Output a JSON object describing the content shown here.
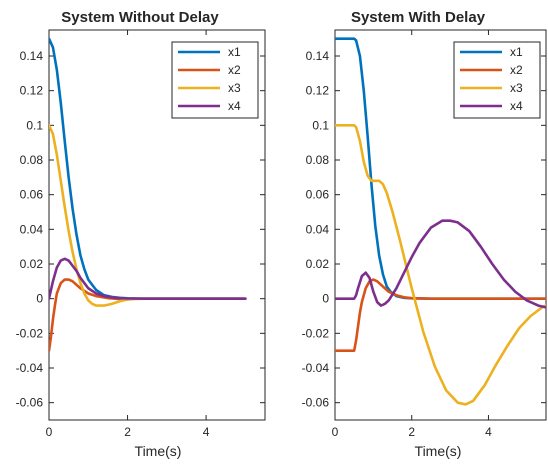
{
  "colors": {
    "x1": "#0072BD",
    "x2": "#D95319",
    "x3": "#EDB120",
    "x4": "#7E2F8E"
  },
  "chart_data": [
    {
      "type": "line",
      "title": "System Without Delay",
      "xlabel": "Time(s)",
      "ylabel": "",
      "xlim": [
        0,
        5.5
      ],
      "ylim": [
        -0.07,
        0.155
      ],
      "xticks": [
        0,
        2,
        4
      ],
      "xtick_labels": [
        "0",
        "2",
        "4"
      ],
      "yticks": [
        -0.06,
        -0.04,
        -0.02,
        0,
        0.02,
        0.04,
        0.06,
        0.08,
        0.1,
        0.12,
        0.14
      ],
      "ytick_labels": [
        "-0.06",
        "-0.04",
        "-0.02",
        "0",
        "0.02",
        "0.04",
        "0.06",
        "0.08",
        "0.1",
        "0.12",
        "0.14"
      ],
      "grid": false,
      "legend_position": "top-right",
      "series": [
        {
          "name": "x1",
          "x": [
            0,
            0.1,
            0.2,
            0.3,
            0.4,
            0.5,
            0.6,
            0.7,
            0.8,
            0.9,
            1.0,
            1.2,
            1.4,
            1.6,
            1.8,
            2.0,
            2.5,
            3.0,
            4.0,
            5.0
          ],
          "y": [
            0.15,
            0.145,
            0.132,
            0.113,
            0.091,
            0.07,
            0.052,
            0.037,
            0.025,
            0.017,
            0.011,
            0.005,
            0.002,
            0.001,
            0.0005,
            0.0002,
            0,
            0,
            0,
            0
          ]
        },
        {
          "name": "x2",
          "x": [
            0,
            0.05,
            0.1,
            0.15,
            0.2,
            0.3,
            0.4,
            0.5,
            0.6,
            0.7,
            0.8,
            1.0,
            1.2,
            1.5,
            1.8,
            2.0,
            2.5,
            3.0,
            4.0,
            5.0
          ],
          "y": [
            -0.03,
            -0.022,
            -0.012,
            -0.004,
            0.003,
            0.009,
            0.011,
            0.011,
            0.01,
            0.008,
            0.006,
            0.003,
            0.0015,
            0.0003,
            -0.0002,
            -0.0002,
            0,
            0,
            0,
            0
          ]
        },
        {
          "name": "x3",
          "x": [
            0,
            0.1,
            0.2,
            0.3,
            0.4,
            0.5,
            0.6,
            0.7,
            0.8,
            0.9,
            1.0,
            1.1,
            1.2,
            1.4,
            1.6,
            1.8,
            2.0,
            2.2,
            2.5,
            3.0,
            4.0,
            5.0
          ],
          "y": [
            0.1,
            0.095,
            0.083,
            0.068,
            0.053,
            0.039,
            0.027,
            0.017,
            0.009,
            0.003,
            -0.001,
            -0.003,
            -0.004,
            -0.004,
            -0.003,
            -0.0015,
            -0.0005,
            0,
            0,
            0,
            0,
            0
          ]
        },
        {
          "name": "x4",
          "x": [
            0,
            0.1,
            0.2,
            0.3,
            0.4,
            0.5,
            0.6,
            0.7,
            0.8,
            0.9,
            1.0,
            1.2,
            1.4,
            1.6,
            1.8,
            2.0,
            2.5,
            3.0,
            4.0,
            5.0
          ],
          "y": [
            0,
            0.01,
            0.018,
            0.022,
            0.023,
            0.022,
            0.019,
            0.016,
            0.012,
            0.009,
            0.006,
            0.003,
            0.0015,
            0.0007,
            0.0003,
            0.0001,
            0,
            0,
            0,
            0
          ]
        }
      ]
    },
    {
      "type": "line",
      "title": "System With Delay",
      "xlabel": "Time(s)",
      "ylabel": "",
      "xlim": [
        0,
        5.5
      ],
      "ylim": [
        -0.07,
        0.155
      ],
      "xticks": [
        0,
        2,
        4
      ],
      "xtick_labels": [
        "0",
        "2",
        "4"
      ],
      "yticks": [
        -0.06,
        -0.04,
        -0.02,
        0,
        0.02,
        0.04,
        0.06,
        0.08,
        0.1,
        0.12,
        0.14
      ],
      "ytick_labels": [
        "-0.06",
        "-0.04",
        "-0.02",
        "0",
        "0.02",
        "0.04",
        "0.06",
        "0.08",
        "0.1",
        "0.12",
        "0.14"
      ],
      "grid": false,
      "legend_position": "top-right",
      "series": [
        {
          "name": "x1",
          "x": [
            0,
            0.5,
            0.55,
            0.65,
            0.75,
            0.85,
            0.95,
            1.05,
            1.15,
            1.25,
            1.35,
            1.45,
            1.6,
            1.8,
            2.0,
            2.5,
            3.0,
            4.0,
            5.0,
            5.5
          ],
          "y": [
            0.15,
            0.15,
            0.149,
            0.14,
            0.12,
            0.094,
            0.066,
            0.042,
            0.025,
            0.014,
            0.007,
            0.004,
            0.0015,
            0.0005,
            0.0002,
            0,
            0,
            0,
            0,
            0
          ]
        },
        {
          "name": "x2",
          "x": [
            0,
            0.5,
            0.55,
            0.6,
            0.65,
            0.7,
            0.8,
            0.9,
            1.0,
            1.1,
            1.2,
            1.4,
            1.6,
            1.8,
            2.0,
            2.5,
            3.0,
            4.0,
            5.0,
            5.5
          ],
          "y": [
            -0.03,
            -0.03,
            -0.024,
            -0.016,
            -0.008,
            -0.002,
            0.006,
            0.01,
            0.011,
            0.01,
            0.008,
            0.004,
            0.002,
            0.0008,
            0.0003,
            0,
            0,
            0,
            0,
            0
          ]
        },
        {
          "name": "x3",
          "x": [
            0,
            0.5,
            0.55,
            0.65,
            0.75,
            0.85,
            0.95,
            1.05,
            1.15,
            1.25,
            1.35,
            1.5,
            1.7,
            2.0,
            2.3,
            2.6,
            2.9,
            3.2,
            3.4,
            3.6,
            3.9,
            4.2,
            4.5,
            4.8,
            5.1,
            5.4,
            5.5
          ],
          "y": [
            0.1,
            0.1,
            0.099,
            0.091,
            0.079,
            0.071,
            0.068,
            0.068,
            0.068,
            0.066,
            0.061,
            0.05,
            0.033,
            0.006,
            -0.019,
            -0.039,
            -0.053,
            -0.06,
            -0.061,
            -0.059,
            -0.05,
            -0.038,
            -0.027,
            -0.017,
            -0.01,
            -0.005,
            -0.004
          ]
        },
        {
          "name": "x4",
          "x": [
            0,
            0.5,
            0.55,
            0.6,
            0.7,
            0.8,
            0.9,
            1.0,
            1.1,
            1.2,
            1.3,
            1.4,
            1.6,
            1.8,
            2.0,
            2.2,
            2.5,
            2.8,
            3.0,
            3.2,
            3.5,
            3.8,
            4.1,
            4.4,
            4.7,
            5.0,
            5.3,
            5.5
          ],
          "y": [
            0,
            0,
            0.002,
            0.006,
            0.013,
            0.015,
            0.012,
            0.004,
            -0.002,
            -0.004,
            -0.003,
            -0.001,
            0.006,
            0.015,
            0.024,
            0.032,
            0.041,
            0.045,
            0.045,
            0.044,
            0.039,
            0.03,
            0.02,
            0.011,
            0.004,
            -0.001,
            -0.004,
            -0.005
          ]
        }
      ]
    }
  ]
}
